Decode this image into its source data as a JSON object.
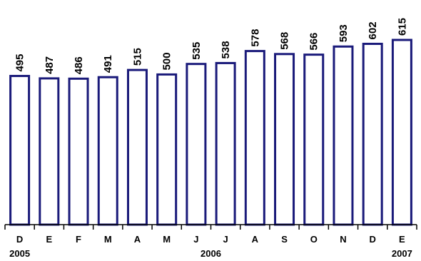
{
  "chart_data": {
    "type": "bar",
    "categories": [
      "D",
      "E",
      "F",
      "M",
      "A",
      "M",
      "J",
      "J",
      "A",
      "S",
      "O",
      "N",
      "D",
      "E"
    ],
    "values": [
      495,
      487,
      486,
      491,
      515,
      500,
      535,
      538,
      578,
      568,
      566,
      593,
      602,
      615
    ],
    "year_labels": [
      {
        "index": 0,
        "text": "2005"
      },
      {
        "index": 6.5,
        "text": "2006"
      },
      {
        "index": 13,
        "text": "2007"
      }
    ],
    "title": "",
    "xlabel": "",
    "ylabel": "",
    "ylim": [
      0,
      615
    ],
    "grid": false,
    "legend": "none",
    "colors": {
      "bar_stroke": "#1a1a7a",
      "bar_fill": "#ffffff",
      "axis": "#000000"
    }
  }
}
